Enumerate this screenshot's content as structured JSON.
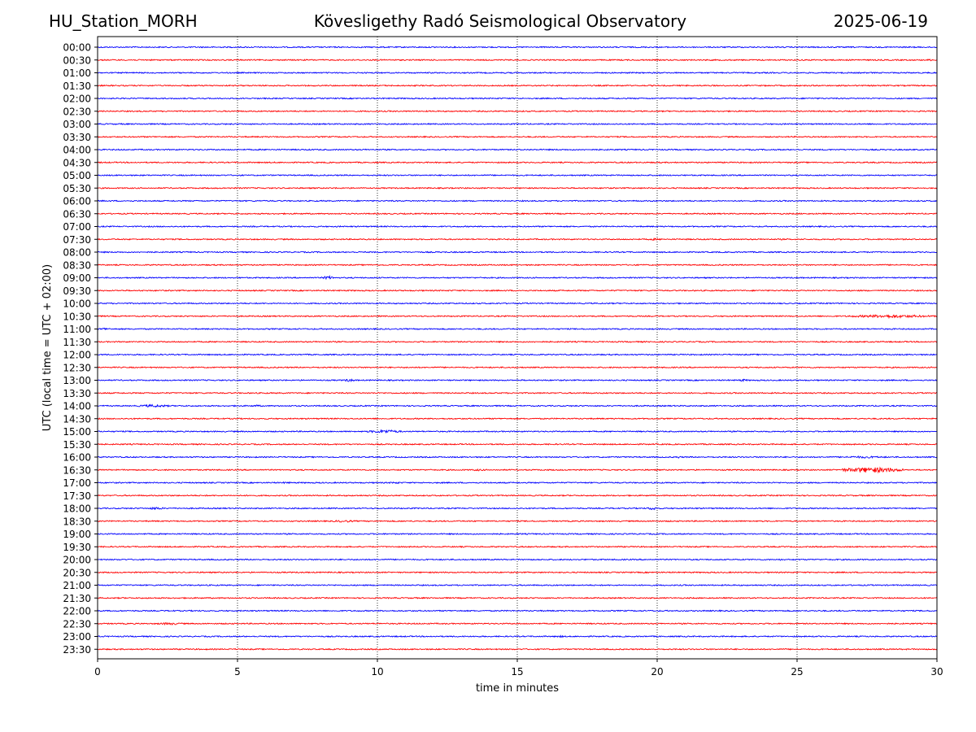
{
  "header": {
    "station": "HU_Station_MORH",
    "observatory": "Kövesligethy Radó Seismological Observatory",
    "date": "2025-06-19"
  },
  "chart_data": {
    "type": "line",
    "title": "Kövesligethy Radó Seismological Observatory",
    "xlabel": "time in minutes",
    "ylabel": "UTC (local time = UTC + 02:00)",
    "xlim": [
      0,
      30
    ],
    "x_ticks": [
      0,
      5,
      10,
      15,
      20,
      25,
      30
    ],
    "grid": "vertical dotted at each x tick",
    "colors": {
      "even_hour_rows": "#0000ff",
      "half_hour_rows": "#ff0000"
    },
    "rows": [
      "00:00",
      "00:30",
      "01:00",
      "01:30",
      "02:00",
      "02:30",
      "03:00",
      "03:30",
      "04:00",
      "04:30",
      "05:00",
      "05:30",
      "06:00",
      "06:30",
      "07:00",
      "07:30",
      "08:00",
      "08:30",
      "09:00",
      "09:30",
      "10:00",
      "10:30",
      "11:00",
      "11:30",
      "12:00",
      "12:30",
      "13:00",
      "13:30",
      "14:00",
      "14:30",
      "15:00",
      "15:30",
      "16:00",
      "16:30",
      "17:00",
      "17:30",
      "18:00",
      "18:30",
      "19:00",
      "19:30",
      "20:00",
      "20:30",
      "21:00",
      "21:30",
      "22:00",
      "22:30",
      "23:00",
      "23:30"
    ],
    "events": [
      {
        "row": "00:30",
        "start_min": 29.6,
        "end_min": 29.9,
        "amp": 1.2
      },
      {
        "row": "07:30",
        "start_min": 19.5,
        "end_min": 20.3,
        "amp": 1.2
      },
      {
        "row": "09:00",
        "start_min": 8.0,
        "end_min": 8.5,
        "amp": 2.2
      },
      {
        "row": "10:30",
        "start_min": 26.7,
        "end_min": 30.0,
        "amp": 2.0
      },
      {
        "row": "11:00",
        "start_min": 0.0,
        "end_min": 0.5,
        "amp": 1.5
      },
      {
        "row": "13:00",
        "start_min": 8.8,
        "end_min": 9.2,
        "amp": 2.0
      },
      {
        "row": "13:00",
        "start_min": 22.8,
        "end_min": 23.3,
        "amp": 1.5
      },
      {
        "row": "14:00",
        "start_min": 1.4,
        "end_min": 2.6,
        "amp": 1.8
      },
      {
        "row": "14:00",
        "start_min": 5.4,
        "end_min": 6.0,
        "amp": 1.2
      },
      {
        "row": "15:00",
        "start_min": 9.6,
        "end_min": 10.9,
        "amp": 2.2
      },
      {
        "row": "16:00",
        "start_min": 20.6,
        "end_min": 20.9,
        "amp": 1.5
      },
      {
        "row": "16:00",
        "start_min": 26.2,
        "end_min": 28.6,
        "amp": 1.3
      },
      {
        "row": "16:30",
        "start_min": 13.2,
        "end_min": 14.0,
        "amp": 1.2
      },
      {
        "row": "16:30",
        "start_min": 26.5,
        "end_min": 28.8,
        "amp": 3.5
      },
      {
        "row": "17:00",
        "start_min": 6.5,
        "end_min": 7.0,
        "amp": 1.2
      },
      {
        "row": "17:00",
        "start_min": 10.3,
        "end_min": 11.0,
        "amp": 1.2
      },
      {
        "row": "18:00",
        "start_min": 1.8,
        "end_min": 2.4,
        "amp": 1.8
      },
      {
        "row": "18:00",
        "start_min": 19.6,
        "end_min": 20.1,
        "amp": 2.0
      },
      {
        "row": "18:30",
        "start_min": 8.3,
        "end_min": 9.3,
        "amp": 1.5
      },
      {
        "row": "20:00",
        "start_min": 24.3,
        "end_min": 24.6,
        "amp": 1.2
      },
      {
        "row": "22:30",
        "start_min": 2.0,
        "end_min": 3.2,
        "amp": 1.5
      },
      {
        "row": "23:00",
        "start_min": 16.3,
        "end_min": 16.8,
        "amp": 1.2
      }
    ]
  }
}
